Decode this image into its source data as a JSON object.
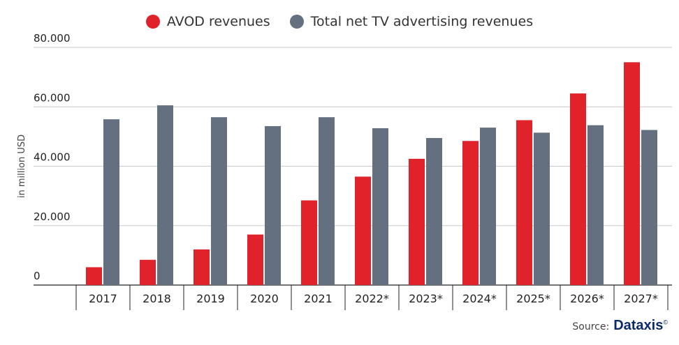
{
  "legend": {
    "avod_label": "AVOD revenues",
    "tv_label": "Total net TV advertising revenues"
  },
  "colors": {
    "avod": "#e0222b",
    "tv": "#647080",
    "grid": "#c8c8c8",
    "axis": "#222222"
  },
  "source": {
    "label": "Source:",
    "brand": "Dataxis",
    "mark": "©"
  },
  "chart_data": {
    "type": "bar",
    "title": "",
    "xlabel": "",
    "ylabel": "in million USD",
    "ylim": [
      0,
      80000
    ],
    "yticks": [
      0,
      20000,
      40000,
      60000,
      80000
    ],
    "ytick_labels": [
      "0",
      "20.000",
      "40.000",
      "60.000",
      "80.000"
    ],
    "categories": [
      "2017",
      "2018",
      "2019",
      "2020",
      "2021",
      "2022*",
      "2023*",
      "2024*",
      "2025*",
      "2026*",
      "2027*"
    ],
    "series": [
      {
        "name": "AVOD revenues",
        "values": [
          6000,
          8500,
          12000,
          17000,
          28500,
          36500,
          42500,
          48500,
          55500,
          64500,
          75000
        ]
      },
      {
        "name": "Total net TV advertising revenues",
        "values": [
          55800,
          60500,
          56500,
          53500,
          56500,
          52800,
          49500,
          53000,
          51300,
          53800,
          52200
        ]
      }
    ],
    "grid": true,
    "legend_position": "top-center"
  }
}
